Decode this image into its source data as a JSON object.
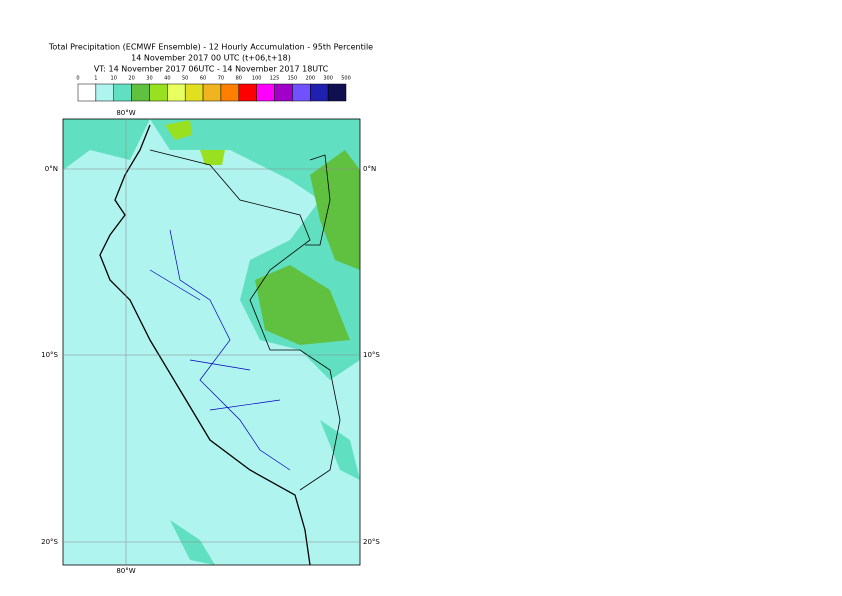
{
  "header": {
    "lines": [
      "Total Precipitation (ECMWF Ensemble) - 12 Hourly Accumulation - 95th Percentile",
      "14 November 2017 00 UTC (t+06,t+18)",
      "VT: 14 November 2017 06UTC - 14 November 2017 18UTC"
    ]
  },
  "legend": {
    "labels": [
      "0",
      "1",
      "10",
      "20",
      "30",
      "40",
      "50",
      "60",
      "70",
      "80",
      "100",
      "125",
      "150",
      "200",
      "300",
      "500"
    ],
    "colors": [
      "#ffffff",
      "#b0f4f0",
      "#60e0c0",
      "#60c040",
      "#98e020",
      "#e8ff60",
      "#e0e020",
      "#f0b420",
      "#ff8000",
      "#ff0000",
      "#ff00ff",
      "#a000c8",
      "#7050ff",
      "#2020b0",
      "#101050"
    ]
  },
  "map": {
    "lon_labels": [
      "80°W"
    ],
    "lat_labels": [
      "0°N",
      "10°S",
      "20°S"
    ]
  }
}
